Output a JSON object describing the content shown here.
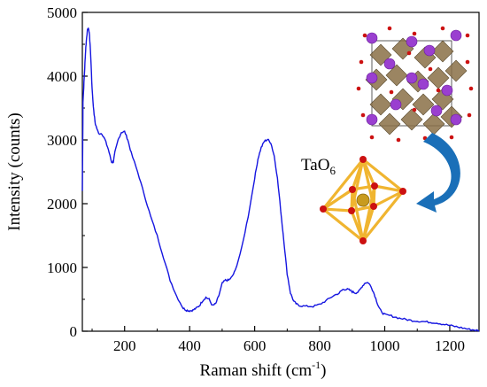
{
  "chart_data": {
    "type": "line",
    "xlabel": "Raman shift (cm",
    "xlabel_sup": "-1",
    "xlabel_end": ")",
    "ylabel": "Intensity (counts)",
    "xlim": [
      70,
      1290
    ],
    "ylim": [
      0,
      5000
    ],
    "xticks": [
      200,
      400,
      600,
      800,
      1000,
      1200
    ],
    "yticks": [
      0,
      1000,
      2000,
      3000,
      4000,
      5000
    ],
    "grid": false,
    "series": [
      {
        "color": "#1515e0",
        "x": [
          70,
          72,
          75,
          78,
          80,
          83,
          86,
          89,
          92,
          96,
          100,
          105,
          110,
          120,
          130,
          140,
          150,
          160,
          165,
          170,
          180,
          190,
          200,
          210,
          220,
          240,
          260,
          280,
          300,
          320,
          340,
          360,
          380,
          390,
          400,
          410,
          420,
          430,
          440,
          450,
          460,
          470,
          480,
          490,
          500,
          510,
          520,
          530,
          540,
          560,
          580,
          600,
          610,
          620,
          630,
          640,
          650,
          660,
          670,
          680,
          690,
          700,
          710,
          720,
          730,
          740,
          760,
          780,
          800,
          820,
          840,
          860,
          870,
          880,
          890,
          900,
          910,
          920,
          930,
          940,
          950,
          960,
          970,
          980,
          990,
          1000,
          1020,
          1040,
          1060,
          1080,
          1100,
          1120,
          1140,
          1160,
          1180,
          1200,
          1220,
          1240,
          1260,
          1280,
          1290
        ],
        "y": [
          2200,
          3600,
          3900,
          4200,
          4400,
          4600,
          4730,
          4750,
          4650,
          4300,
          3800,
          3450,
          3250,
          3100,
          3100,
          3000,
          2850,
          2650,
          2650,
          2800,
          3000,
          3120,
          3130,
          3000,
          2800,
          2500,
          2150,
          1800,
          1500,
          1150,
          800,
          550,
          360,
          330,
          320,
          330,
          360,
          400,
          480,
          530,
          500,
          400,
          430,
          560,
          750,
          800,
          800,
          850,
          950,
          1300,
          1800,
          2400,
          2700,
          2880,
          2980,
          3010,
          2950,
          2750,
          2400,
          1900,
          1400,
          900,
          600,
          470,
          420,
          400,
          390,
          390,
          420,
          480,
          550,
          600,
          650,
          660,
          650,
          620,
          600,
          620,
          700,
          760,
          760,
          680,
          550,
          400,
          300,
          260,
          240,
          210,
          190,
          170,
          160,
          150,
          140,
          130,
          110,
          90,
          70,
          50,
          30,
          15,
          10
        ]
      }
    ],
    "annotations": [
      {
        "text_main": "TaO",
        "text_sub": "6"
      }
    ]
  },
  "colors": {
    "octahedron_edge": "#f0b530",
    "octahedron_vertex": "#cc1111",
    "octahedron_center": "#c89b1e",
    "arrow": "#1a6fb8",
    "ta_atom": "#9a3fd0",
    "crystal_polyhedra": "#8a7046"
  }
}
